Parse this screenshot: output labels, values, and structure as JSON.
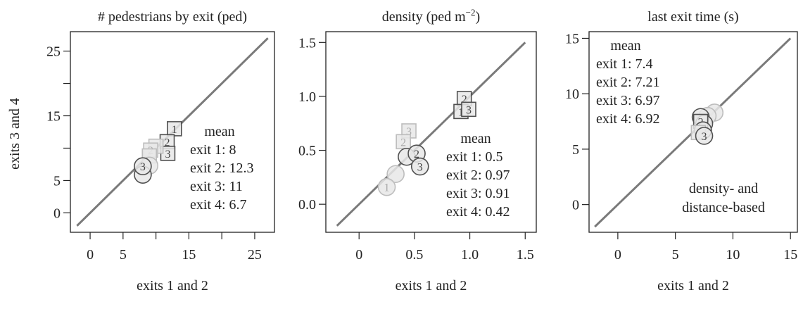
{
  "figure": {
    "y_axis_label": "exits 3 and 4"
  },
  "chart_data": [
    {
      "type": "scatter",
      "title": "# pedestrians by exit (ped)",
      "xlabel": "exits 1 and 2",
      "ylabel": "exits 3 and 4",
      "xlim": [
        -3,
        28
      ],
      "ylim": [
        -3,
        28
      ],
      "xticks": [
        {
          "value": 0,
          "label": "0"
        },
        {
          "value": 5,
          "label": "5"
        },
        {
          "value": 15,
          "label": "15"
        },
        {
          "value": 25,
          "label": "25"
        }
      ],
      "xticks_minor": [
        10,
        20
      ],
      "yticks": [
        {
          "value": 0,
          "label": "0"
        },
        {
          "value": 5,
          "label": "5"
        },
        {
          "value": 15,
          "label": "15"
        },
        {
          "value": 25,
          "label": "25"
        }
      ],
      "yticks_minor": [
        10,
        20
      ],
      "identity_line": [
        -2,
        27
      ],
      "legend": {
        "title": "mean",
        "entries": [
          "exit 1: 8",
          "exit 2: 12.3",
          "exit 3: 11",
          "exit 4: 6.7"
        ],
        "placement": "center-right"
      },
      "annotation": [],
      "points": [
        {
          "x": 12.8,
          "y": 13.0,
          "label": "1",
          "shape": "square",
          "shade": "dark"
        },
        {
          "x": 11.7,
          "y": 11.0,
          "label": "2",
          "shape": "square",
          "shade": "dark"
        },
        {
          "x": 11.8,
          "y": 9.2,
          "label": "3",
          "shape": "square",
          "shade": "dark"
        },
        {
          "x": 10.0,
          "y": 10.3,
          "label": "",
          "shape": "square",
          "shade": "light"
        },
        {
          "x": 9.2,
          "y": 9.7,
          "label": "2",
          "shape": "square",
          "shade": "light"
        },
        {
          "x": 9.0,
          "y": 8.8,
          "label": "",
          "shape": "square",
          "shade": "light"
        },
        {
          "x": 9.0,
          "y": 7.3,
          "label": "",
          "shape": "circle",
          "shade": "light"
        },
        {
          "x": 8.0,
          "y": 5.9,
          "label": "",
          "shape": "circle",
          "shade": "dark"
        },
        {
          "x": 8.0,
          "y": 7.2,
          "label": "3",
          "shape": "circle",
          "shade": "dark"
        }
      ]
    },
    {
      "type": "scatter",
      "title": "density (ped m−2)",
      "xlabel": "exits 1 and 2",
      "ylabel": "",
      "xlim": [
        -0.3,
        1.6
      ],
      "ylim": [
        -0.26,
        1.6
      ],
      "xticks": [
        {
          "value": 0,
          "label": "0"
        },
        {
          "value": 0.5,
          "label": "0.5"
        },
        {
          "value": 1.0,
          "label": "1.0"
        },
        {
          "value": 1.5,
          "label": "1.5"
        }
      ],
      "xticks_minor": [],
      "yticks": [
        {
          "value": 0,
          "label": "0.0"
        },
        {
          "value": 0.5,
          "label": "0.5"
        },
        {
          "value": 1.0,
          "label": "1.0"
        },
        {
          "value": 1.5,
          "label": "1.5"
        }
      ],
      "yticks_minor": [],
      "identity_line": [
        -0.2,
        1.5
      ],
      "legend": {
        "title": "mean",
        "entries": [
          "exit 1: 0.5",
          "exit 2: 0.97",
          "exit 3: 0.91",
          "exit 4: 0.42"
        ],
        "placement": "bottom-right"
      },
      "annotation": [],
      "points": [
        {
          "x": 0.95,
          "y": 0.98,
          "label": "2",
          "shape": "square",
          "shade": "dark"
        },
        {
          "x": 0.92,
          "y": 0.86,
          "label": "1",
          "shape": "square",
          "shade": "dark"
        },
        {
          "x": 0.99,
          "y": 0.88,
          "label": "3",
          "shape": "square",
          "shade": "dark"
        },
        {
          "x": 0.45,
          "y": 0.68,
          "label": "3",
          "shape": "square",
          "shade": "light"
        },
        {
          "x": 0.4,
          "y": 0.58,
          "label": "2",
          "shape": "square",
          "shade": "light"
        },
        {
          "x": 0.43,
          "y": 0.44,
          "label": "",
          "shape": "circle",
          "shade": "dark"
        },
        {
          "x": 0.52,
          "y": 0.47,
          "label": "2",
          "shape": "circle",
          "shade": "dark"
        },
        {
          "x": 0.55,
          "y": 0.35,
          "label": "3",
          "shape": "circle",
          "shade": "dark"
        },
        {
          "x": 0.33,
          "y": 0.28,
          "label": "",
          "shape": "circle",
          "shade": "light"
        },
        {
          "x": 0.25,
          "y": 0.16,
          "label": "1",
          "shape": "circle",
          "shade": "light"
        }
      ]
    },
    {
      "type": "scatter",
      "title": "last exit time (s)",
      "xlabel": "exits 1 and 2",
      "ylabel": "",
      "xlim": [
        -2.5,
        15.6
      ],
      "ylim": [
        -2.5,
        15.6
      ],
      "xticks": [
        {
          "value": 0,
          "label": "0"
        },
        {
          "value": 5,
          "label": "5"
        },
        {
          "value": 10,
          "label": "10"
        },
        {
          "value": 15,
          "label": "15"
        }
      ],
      "xticks_minor": [],
      "yticks": [
        {
          "value": 0,
          "label": "0"
        },
        {
          "value": 5,
          "label": "5"
        },
        {
          "value": 10,
          "label": "10"
        },
        {
          "value": 15,
          "label": "15"
        }
      ],
      "yticks_minor": [],
      "identity_line": [
        -2,
        15
      ],
      "legend": {
        "title": "mean",
        "entries": [
          "exit 1: 7.4",
          "exit 2: 7.21",
          "exit 3: 6.97",
          "exit 4: 6.92"
        ],
        "placement": "top-left"
      },
      "annotation": [
        "density- and",
        "distance-based"
      ],
      "points": [
        {
          "x": 8.4,
          "y": 8.3,
          "label": "",
          "shape": "circle",
          "shade": "light"
        },
        {
          "x": 7.8,
          "y": 8.0,
          "label": "",
          "shape": "circle",
          "shade": "light"
        },
        {
          "x": 7.2,
          "y": 7.9,
          "label": "",
          "shape": "circle",
          "shade": "dark"
        },
        {
          "x": 7.5,
          "y": 7.3,
          "label": "",
          "shape": "circle",
          "shade": "dark"
        },
        {
          "x": 7.2,
          "y": 7.5,
          "label": "2",
          "shape": "square",
          "shade": "dark"
        },
        {
          "x": 7.4,
          "y": 6.7,
          "label": "",
          "shape": "circle",
          "shade": "dark"
        },
        {
          "x": 7.0,
          "y": 6.5,
          "label": "",
          "shape": "square",
          "shade": "light"
        },
        {
          "x": 7.5,
          "y": 6.2,
          "label": "3",
          "shape": "circle",
          "shade": "dark"
        }
      ]
    }
  ]
}
